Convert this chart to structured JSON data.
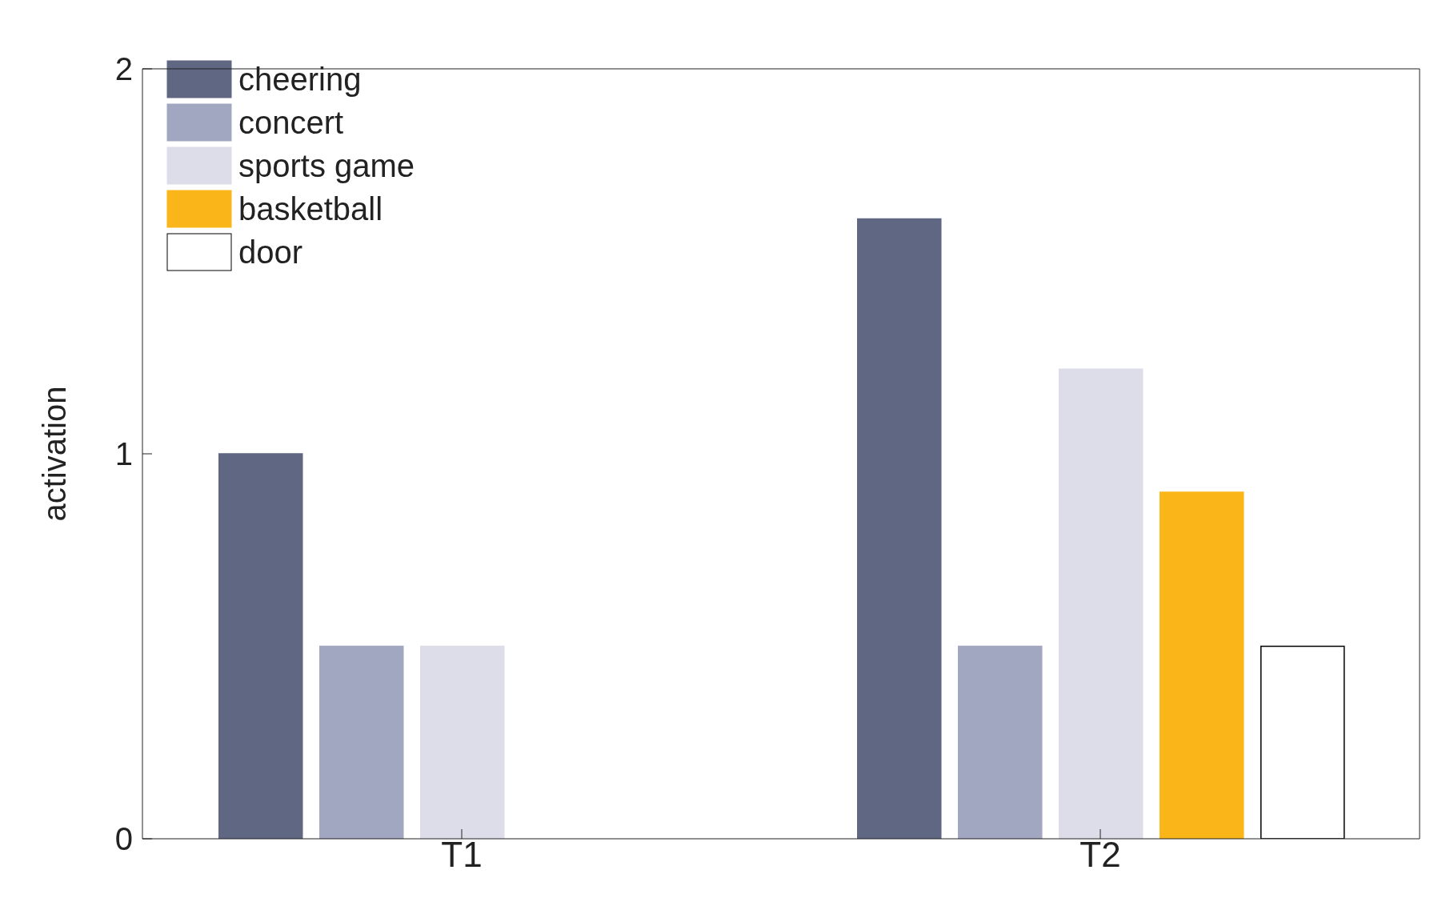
{
  "chart_data": {
    "type": "bar",
    "ylabel": "activation",
    "categories": [
      "T1",
      "T2"
    ],
    "series": [
      {
        "name": "cheering",
        "color": "#606782",
        "values": [
          1.0,
          1.61
        ]
      },
      {
        "name": "concert",
        "color": "#a2a7c1",
        "values": [
          0.5,
          0.5
        ]
      },
      {
        "name": "sports game",
        "color": "#dddde9",
        "values": [
          0.5,
          1.22
        ]
      },
      {
        "name": "basketball",
        "color": "#fab518",
        "values": [
          0,
          0.9
        ]
      },
      {
        "name": "door",
        "color": "#ffffff",
        "values": [
          0,
          0.5
        ]
      }
    ],
    "ylim": [
      0,
      2
    ],
    "yticks": [
      0,
      1,
      2
    ],
    "legend": "top left"
  }
}
